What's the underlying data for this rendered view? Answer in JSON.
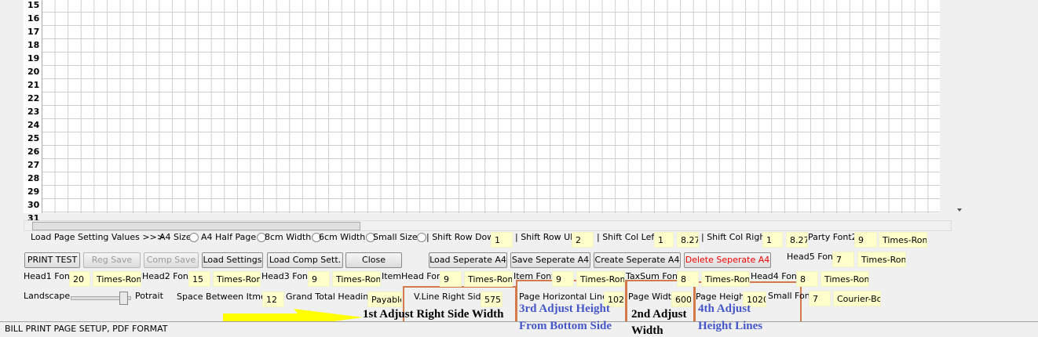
{
  "grid": {
    "row_numbers": [
      "15",
      "16",
      "17",
      "18",
      "19",
      "20",
      "21",
      "22",
      "23",
      "24",
      "25",
      "26",
      "27",
      "28",
      "29",
      "30",
      "31"
    ]
  },
  "settings_bar": {
    "load_label": "Load Page Setting Values >>>",
    "radios": [
      "A4 Size",
      "A4 Half Page",
      "8cm Width",
      "6cm Width",
      "Small Size"
    ],
    "shift_row_down": {
      "label": "| Shift Row Down:",
      "value": "1"
    },
    "shift_row_up": {
      "label": "| Shift Row UP:",
      "value": "2"
    },
    "shift_col_left": {
      "label": "| Shift Col Left:",
      "values": [
        "1",
        "8.27"
      ]
    },
    "shift_col_right": {
      "label": "| Shift Col Right:",
      "values": [
        "1",
        "8.27"
      ]
    },
    "party_font2": {
      "label": "Party Font2",
      "size": "9",
      "font": "Times-Roma"
    }
  },
  "buttons": [
    "PRINT TEST",
    "Reg Save",
    "Comp Save",
    "Load Settings",
    "Load Comp Sett.",
    "Close",
    "Load Seperate A4",
    "Save Seperate A4",
    "Create Seperate A4",
    "Delete Seperate A4"
  ],
  "fonts": [
    {
      "label": "Head5 Font",
      "size": "7",
      "font": "Times-Roma"
    },
    {
      "label": "Head1 Font",
      "size": "20",
      "font": "Times-Roma"
    },
    {
      "label": "Head2 Font",
      "size": "15",
      "font": "Times-Roma"
    },
    {
      "label": "Head3 Font",
      "size": "9",
      "font": "Times-Roma"
    },
    {
      "label": "ItemHead Font",
      "size": "9",
      "font": "Times-Roma"
    },
    {
      "label": "Item Font",
      "size": "9",
      "font": "Times-Roma"
    },
    {
      "label": "TaxSum Font",
      "size": "8",
      "font": "Times-Roma"
    },
    {
      "label": "Head4 Font",
      "size": "8",
      "font": "Times-Roma"
    },
    {
      "label": "Small Font",
      "size": "7",
      "font": "Courier-Bold"
    }
  ],
  "orientation": {
    "left": "Landscape",
    "right": "Potrait"
  },
  "space_between_items": {
    "label": "Space Between Itmes:",
    "value": "12"
  },
  "grand_total_heading": {
    "label": "Grand Total Heading:",
    "value": "Payable"
  },
  "vline_right_side": {
    "label": "V.Line Right Side:",
    "value": "575",
    "note": "1st Adjust Right Side Width"
  },
  "page_horizontal_lines": {
    "label": "Page Horizontal Lines:",
    "value": "102",
    "note": [
      "3rd Adjust Height",
      "From Bottom Side"
    ]
  },
  "page_width": {
    "label": "Page Width",
    "value": "600",
    "note": [
      "2nd Adjust",
      "Width"
    ]
  },
  "page_height": {
    "label": "Page Height",
    "value": "1020",
    "note": [
      "4th Adjust",
      "Height Lines"
    ]
  },
  "status_bar": "BILL PRINT PAGE SETUP, PDF FORMAT"
}
